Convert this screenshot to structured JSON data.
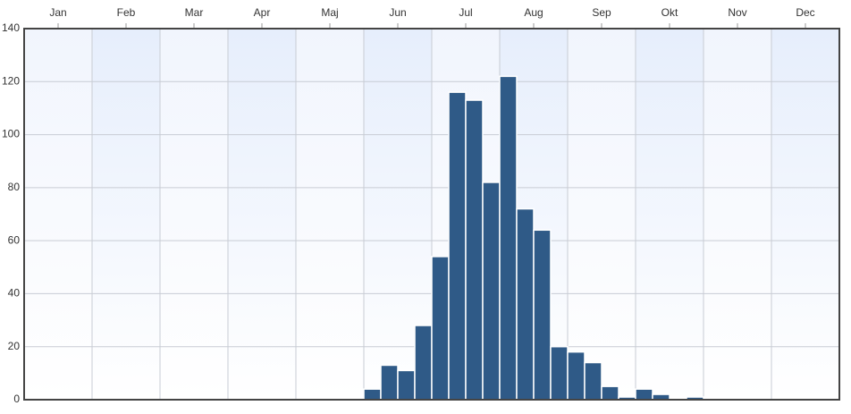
{
  "chart_data": {
    "type": "histogram",
    "bins": [
      5,
      5.25,
      5.5,
      5.75,
      6,
      6.25,
      6.5,
      6.75,
      7,
      7.25,
      7.5,
      7.75,
      8,
      8.25,
      8.5,
      8.75,
      9,
      9.25,
      9.5,
      9.75,
      10
    ],
    "values": [
      4,
      13,
      11,
      28,
      54,
      116,
      113,
      82,
      122,
      72,
      64,
      20,
      18,
      14,
      5,
      1,
      4,
      2,
      0,
      1
    ],
    "color": "#2f5a87",
    "xlim": [
      0,
      12
    ],
    "xticks": [
      {
        "value": 0.5,
        "label": "Jan"
      },
      {
        "value": 1.5,
        "label": "Feb"
      },
      {
        "value": 2.5,
        "label": "Mar"
      },
      {
        "value": 3.5,
        "label": "Apr"
      },
      {
        "value": 4.5,
        "label": "Maj"
      },
      {
        "value": 5.5,
        "label": "Jun"
      },
      {
        "value": 6.5,
        "label": "Jul"
      },
      {
        "value": 7.5,
        "label": "Aug"
      },
      {
        "value": 8.5,
        "label": "Sep"
      },
      {
        "value": 9.5,
        "label": "Okt"
      },
      {
        "value": 10.5,
        "label": "Nov"
      },
      {
        "value": 11.5,
        "label": "Dec"
      }
    ],
    "ylim": [
      0,
      140
    ],
    "yticks": [
      0,
      20,
      40,
      60,
      80,
      100,
      120,
      140
    ],
    "grid": true
  }
}
